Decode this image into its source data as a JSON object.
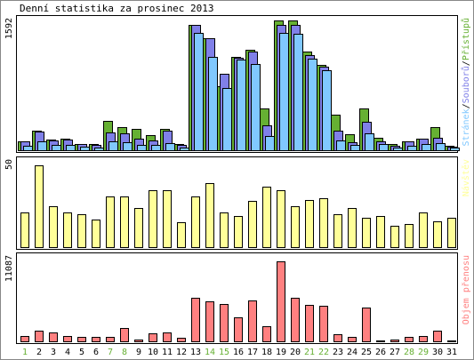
{
  "title": "Denní statistika za prosinec 2013",
  "colors": {
    "hits": "#66b033",
    "files": "#8080e8",
    "pages": "#80c8ff",
    "visits": "#ffff99",
    "kbytes": "#ff8080",
    "weekend_label": "#66b033"
  },
  "chart_data": [
    {
      "type": "bar",
      "title": "Denní statistika za prosinec 2013",
      "ylabel": "Stránek/Souborů/Přístupů",
      "y_tick_label": "1592",
      "ylim": [
        0,
        1592
      ],
      "categories": [
        "1",
        "2",
        "3",
        "4",
        "5",
        "6",
        "7",
        "8",
        "9",
        "10",
        "11",
        "12",
        "13",
        "14",
        "15",
        "16",
        "17",
        "18",
        "19",
        "20",
        "21",
        "22",
        "23",
        "24",
        "25",
        "26",
        "27",
        "28",
        "29",
        "30",
        "31"
      ],
      "series": [
        {
          "name": "Přístupů",
          "color": "#66b033",
          "values": [
            114,
            244,
            130,
            140,
            80,
            78,
            360,
            288,
            262,
            188,
            261,
            80,
            1540,
            1370,
            790,
            1140,
            1235,
            510,
            1592,
            1592,
            1210,
            1050,
            440,
            195,
            510,
            150,
            80,
            110,
            140,
            282,
            50
          ]
        },
        {
          "name": "Souborů",
          "color": "#8080e8",
          "values": [
            114,
            225,
            120,
            128,
            72,
            70,
            220,
            205,
            142,
            125,
            236,
            66,
            1540,
            1370,
            935,
            1130,
            1210,
            300,
            1540,
            1540,
            1170,
            1030,
            245,
            95,
            350,
            110,
            57,
            105,
            145,
            150,
            45
          ]
        },
        {
          "name": "Stránek",
          "color": "#80c8ff",
          "values": [
            50,
            105,
            70,
            64,
            40,
            37,
            104,
            100,
            70,
            63,
            90,
            35,
            1440,
            1150,
            760,
            1110,
            1055,
            175,
            1440,
            1430,
            1125,
            980,
            125,
            63,
            205,
            78,
            30,
            57,
            75,
            85,
            35
          ]
        }
      ]
    },
    {
      "type": "bar",
      "ylabel": "Návštěv",
      "y_tick_label": "50",
      "ylim": [
        0,
        50
      ],
      "categories": [
        "1",
        "2",
        "3",
        "4",
        "5",
        "6",
        "7",
        "8",
        "9",
        "10",
        "11",
        "12",
        "13",
        "14",
        "15",
        "16",
        "17",
        "18",
        "19",
        "20",
        "21",
        "22",
        "23",
        "24",
        "25",
        "26",
        "27",
        "28",
        "29",
        "30",
        "31"
      ],
      "series": [
        {
          "name": "Návštěv",
          "color": "#ffff99",
          "values": [
            21,
            50,
            25,
            21,
            20,
            17,
            31,
            31,
            24,
            35,
            35,
            15,
            31,
            39,
            21,
            19,
            28,
            37,
            35,
            25,
            29,
            30,
            20,
            24,
            18,
            19,
            13,
            14,
            21,
            16,
            18
          ]
        }
      ]
    },
    {
      "type": "bar",
      "ylabel": "Objem přenosu",
      "y_tick_label": "11087",
      "ylim": [
        0,
        11087
      ],
      "categories": [
        "1",
        "2",
        "3",
        "4",
        "5",
        "6",
        "7",
        "8",
        "9",
        "10",
        "11",
        "12",
        "13",
        "14",
        "15",
        "16",
        "17",
        "18",
        "19",
        "20",
        "21",
        "22",
        "23",
        "24",
        "25",
        "26",
        "27",
        "28",
        "29",
        "30",
        "31"
      ],
      "series": [
        {
          "name": "Objem přenosu",
          "color": "#ff8080",
          "values": [
            680,
            1520,
            1280,
            800,
            640,
            560,
            560,
            1860,
            240,
            1120,
            1180,
            520,
            6050,
            5560,
            5220,
            3290,
            5720,
            2110,
            11087,
            6050,
            5060,
            4980,
            1010,
            660,
            4700,
            180,
            230,
            610,
            720,
            1470,
            100
          ]
        }
      ]
    }
  ],
  "weekend_days": [
    1,
    7,
    8,
    14,
    15,
    21,
    22,
    28,
    29
  ]
}
